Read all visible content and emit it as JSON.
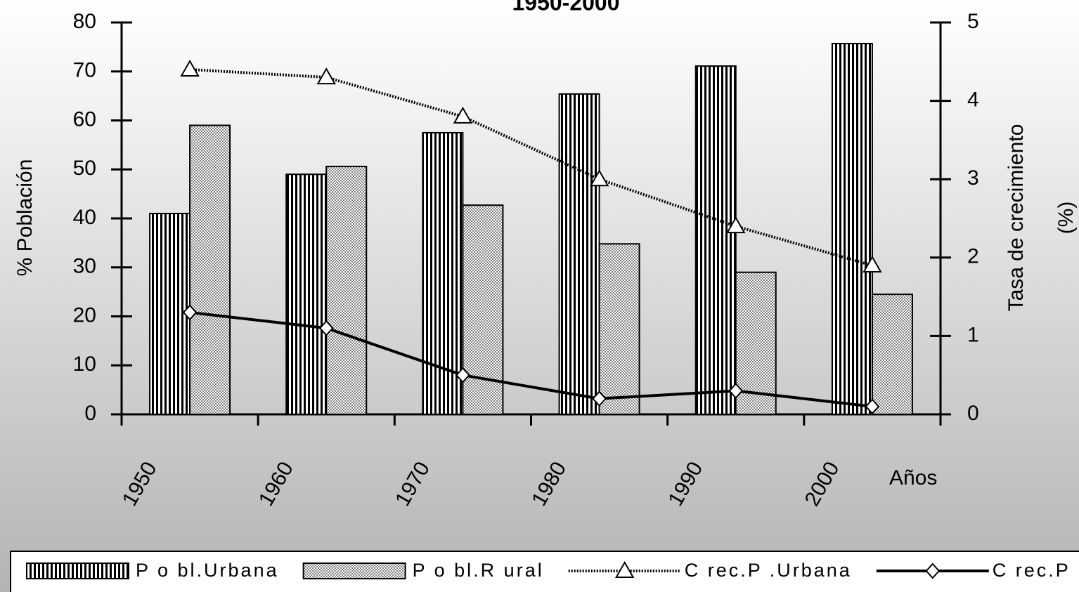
{
  "chart_data": {
    "type": "bar",
    "title": "1950-2000",
    "categories": [
      "1950",
      "1960",
      "1970",
      "1980",
      "1990",
      "2000"
    ],
    "x_label": "Años",
    "ylabel": "% Población",
    "y2label": [
      "Tasa de crecimiento",
      "(%)"
    ],
    "ylim": [
      0,
      80
    ],
    "yticks": [
      0,
      10,
      20,
      30,
      40,
      50,
      60,
      70,
      80
    ],
    "y2lim": [
      0,
      5
    ],
    "y2ticks": [
      0,
      1,
      2,
      3,
      4,
      5
    ],
    "grid": false,
    "legend": "bottom",
    "series": [
      {
        "name": "P o bl.Urbana",
        "type": "bar",
        "color": "#000000",
        "values": [
          41,
          49,
          57.5,
          65.4,
          71.1,
          75.7
        ]
      },
      {
        "name": "P o bl.R ural",
        "type": "bar",
        "color": "#808080",
        "values": [
          59,
          50.6,
          42.7,
          34.8,
          29,
          24.5
        ]
      },
      {
        "name": "C rec.P .Urbana",
        "type": "line",
        "marker": "triangle",
        "axis": "y2",
        "color": "#000000",
        "values": [
          4.4,
          4.3,
          3.8,
          3.0,
          2.4,
          1.9
        ]
      },
      {
        "name": "C rec.P .R ur.",
        "type": "line",
        "marker": "diamond",
        "axis": "y2",
        "color": "#000000",
        "values": [
          1.3,
          1.1,
          0.5,
          0.2,
          0.3,
          0.1
        ]
      }
    ]
  }
}
